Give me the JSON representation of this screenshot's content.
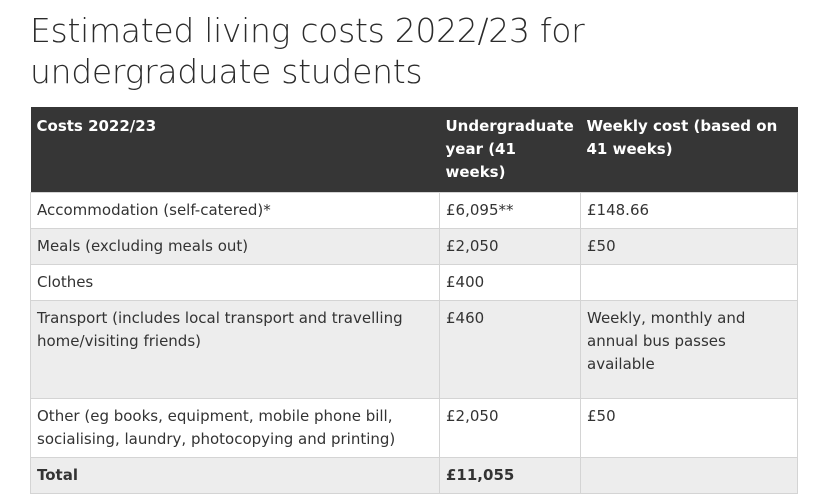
{
  "page": {
    "title": "Estimated living costs 2022/23 for undergraduate students"
  },
  "table": {
    "headers": [
      "Costs 2022/23",
      "Undergraduate year (41 weeks)",
      "Weekly cost (based on 41 weeks)"
    ],
    "rows": [
      {
        "item": "Accommodation (self-catered)*",
        "year": "£6,095**",
        "weekly": "£148.66"
      },
      {
        "item": "Meals (excluding meals out)",
        "year": "£2,050",
        "weekly": "£50"
      },
      {
        "item": "Clothes",
        "year": "£400",
        "weekly": ""
      },
      {
        "item": "Transport (includes local transport and travelling home/visiting friends)",
        "year": "£460",
        "weekly": "Weekly, monthly and annual bus passes available"
      },
      {
        "item": "Other (eg books, equipment, mobile phone bill, socialising, laundry, photocopying and printing)",
        "year": "£2,050",
        "weekly": "£50"
      }
    ],
    "total": {
      "label": "Total",
      "year": "£11,055",
      "weekly": ""
    }
  }
}
